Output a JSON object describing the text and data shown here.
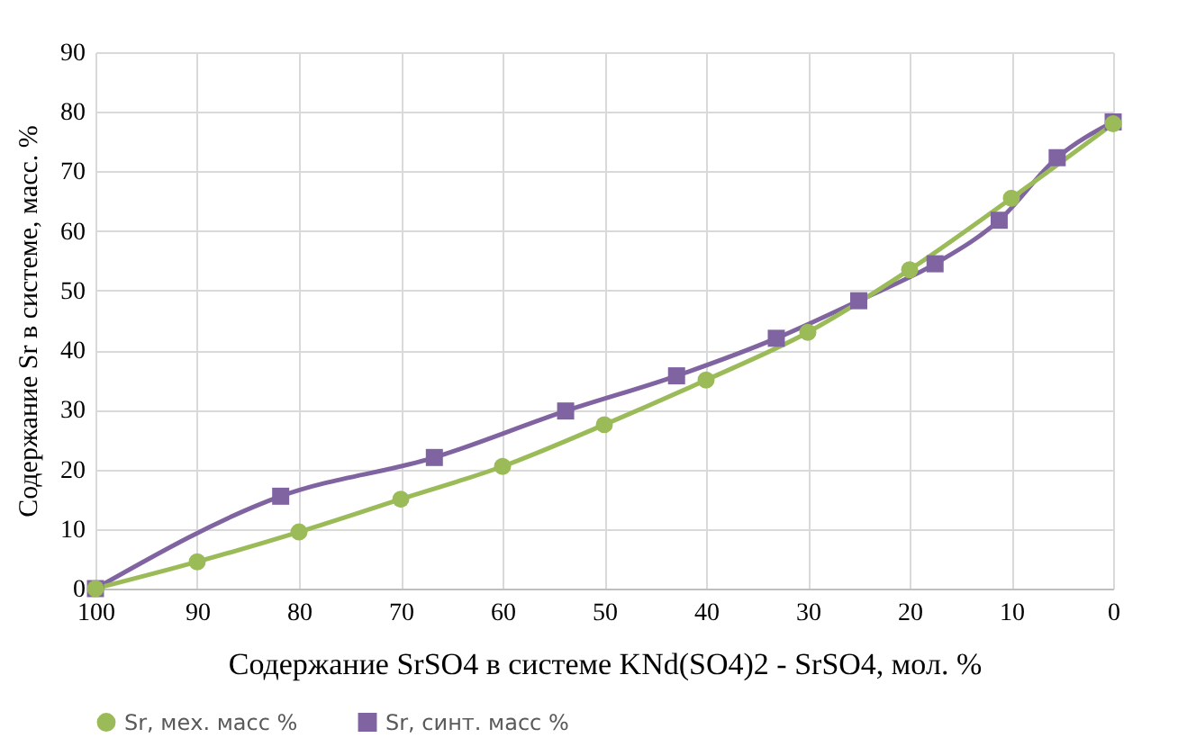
{
  "chart_data": {
    "type": "line",
    "xlabel": "Содержание SrSO4 в системе KNd(SO4)2 - SrSO4, мол. %",
    "ylabel": "Содержание Sr в системе, масс. %",
    "xlim": [
      100,
      0
    ],
    "xticks": [
      100,
      90,
      80,
      70,
      60,
      50,
      40,
      30,
      20,
      10,
      0
    ],
    "ylim": [
      0,
      90
    ],
    "yticks": [
      0,
      10,
      20,
      30,
      40,
      50,
      60,
      70,
      80,
      90
    ],
    "grid": true,
    "legend": "bottom",
    "line_style": "solid",
    "series": [
      {
        "name": "Sr, мех. масс %",
        "color": "#9bbb59",
        "marker": "circle",
        "x": [
          100,
          90,
          80,
          70,
          60,
          50,
          40,
          30,
          20,
          10,
          0
        ],
        "values": [
          0,
          4.5,
          9.5,
          15,
          20.5,
          27.5,
          35,
          43,
          53.5,
          65.5,
          78
        ]
      },
      {
        "name": "Sr, синт. масс %",
        "color": "#8064a2",
        "marker": "square",
        "x": [
          100,
          81.8,
          66.7,
          53.8,
          42.9,
          33.1,
          25,
          17.5,
          11.2,
          5.5,
          0
        ],
        "values": [
          0,
          15.5,
          22,
          29.8,
          35.7,
          42,
          48.3,
          54.5,
          61.8,
          72.3,
          78.3
        ]
      }
    ]
  }
}
